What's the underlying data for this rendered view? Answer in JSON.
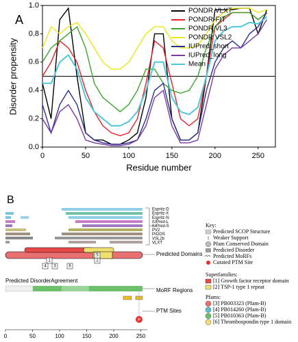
{
  "chart_data": {
    "type": "line",
    "panel_label": "A",
    "x_label": "Residue number",
    "y_label": "Disorder propensity",
    "x": [
      0,
      10,
      20,
      30,
      40,
      50,
      60,
      70,
      80,
      90,
      100,
      110,
      120,
      130,
      140,
      150,
      160,
      170,
      180,
      190,
      200,
      210,
      220,
      230,
      240,
      250,
      260
    ],
    "series": [
      {
        "name": "PONDR VLXT",
        "color": "#000000",
        "values": [
          0.45,
          0.2,
          0.9,
          0.98,
          0.5,
          0.1,
          0.05,
          0.05,
          0.02,
          0.02,
          0.05,
          0.1,
          0.35,
          0.8,
          0.8,
          0.2,
          0.05,
          0.05,
          0.1,
          0.5,
          0.97,
          0.97,
          0.97,
          0.98,
          0.98,
          0.8,
          0.97
        ]
      },
      {
        "name": "PONDR-FIT",
        "color": "#e8202a",
        "values": [
          0.5,
          0.6,
          0.75,
          0.7,
          0.6,
          0.4,
          0.25,
          0.15,
          0.1,
          0.08,
          0.1,
          0.2,
          0.45,
          0.75,
          0.7,
          0.45,
          0.2,
          0.15,
          0.2,
          0.5,
          0.85,
          0.9,
          0.95,
          0.95,
          0.95,
          0.9,
          0.95
        ]
      },
      {
        "name": "PONDR VL3",
        "color": "#3aa62a",
        "values": [
          0.6,
          0.7,
          0.75,
          0.8,
          0.85,
          0.7,
          0.45,
          0.35,
          0.3,
          0.25,
          0.3,
          0.4,
          0.55,
          0.55,
          0.45,
          0.4,
          0.38,
          0.4,
          0.5,
          0.7,
          0.85,
          0.92,
          0.95,
          0.95,
          0.95,
          0.9,
          0.95
        ]
      },
      {
        "name": "PONDR VSL2",
        "color": "#e8e81a",
        "values": [
          0.7,
          0.85,
          0.8,
          0.85,
          0.88,
          0.8,
          0.7,
          0.6,
          0.55,
          0.55,
          0.6,
          0.7,
          0.8,
          0.85,
          0.85,
          0.75,
          0.7,
          0.7,
          0.72,
          0.8,
          0.9,
          0.95,
          0.98,
          0.98,
          0.98,
          0.95,
          0.97
        ]
      },
      {
        "name": "IUPred_short",
        "color": "#2b2f8f",
        "values": [
          0.3,
          0.1,
          0.3,
          0.4,
          0.3,
          0.1,
          0.05,
          0.03,
          0.02,
          0.02,
          0.03,
          0.05,
          0.2,
          0.4,
          0.45,
          0.2,
          0.05,
          0.05,
          0.1,
          0.4,
          0.6,
          0.7,
          0.75,
          0.7,
          0.8,
          0.85,
          0.95
        ]
      },
      {
        "name": "IUPred_long",
        "color": "#7a3aa0",
        "values": [
          0.2,
          0.1,
          0.25,
          0.3,
          0.2,
          0.05,
          0.03,
          0.02,
          0.01,
          0.01,
          0.02,
          0.05,
          0.15,
          0.35,
          0.4,
          0.15,
          0.03,
          0.03,
          0.05,
          0.3,
          0.55,
          0.65,
          0.7,
          0.7,
          0.75,
          0.8,
          0.9
        ]
      },
      {
        "name": "Mean",
        "color": "#4ec8d8",
        "values": [
          0.45,
          0.45,
          0.6,
          0.65,
          0.55,
          0.35,
          0.25,
          0.2,
          0.15,
          0.15,
          0.18,
          0.25,
          0.4,
          0.6,
          0.6,
          0.35,
          0.25,
          0.23,
          0.28,
          0.5,
          0.75,
          0.82,
          0.85,
          0.85,
          0.88,
          0.87,
          0.92
        ]
      }
    ],
    "xlim": [
      0,
      270
    ],
    "xticks": [
      0,
      50,
      100,
      150,
      200,
      250
    ],
    "ylim": [
      0,
      1.0
    ],
    "yticks": [
      {
        "value": 0,
        "label": "0.0"
      },
      0.2,
      0.4,
      0.6,
      0.8,
      {
        "value": 1.0,
        "label": "1.0"
      }
    ],
    "threshold": 0.5,
    "legend": "upper right"
  },
  "panel_b": {
    "panel_label": "B",
    "track_labels": [
      "Espritz-D",
      "Espritz-X",
      "Espritz-N",
      "IUPred-L",
      "IUPred-S",
      "PV2",
      "PrDOS",
      "VSL2b",
      "VLXT"
    ],
    "domain_labels": [
      "1",
      "2",
      "3",
      "4",
      "5",
      "6"
    ],
    "section_labels": [
      "Predicted Domains",
      "MoRF Regions",
      "PTM Sites"
    ],
    "agreement_label": "Predicted DisorderAgreement",
    "ptm_symbol": "P",
    "axis_ticks": [
      0,
      50,
      100,
      150,
      200,
      250
    ],
    "key": {
      "title": "Key:",
      "items": [
        "Predicted SCOP Structure",
        "Weaker Support",
        "Pfam Conserved Domain",
        "Predicted Disorder",
        "Predicted MoRFs",
        "Curated PTM Site"
      ]
    },
    "superfamilies": {
      "title": "Superfamilies:",
      "items": [
        "[1] Growth factor receptor domain",
        "[2] TSP-1 type 1 repeat"
      ]
    },
    "pfams": {
      "title": "Pfams:",
      "items": [
        "[3] PB003323 (Pfam-B)",
        "[4] PB014260 (Pfam-B)",
        "[5] PB010363 (Pfam-B)",
        "[6] Thrombospondin type 1 domain"
      ]
    }
  }
}
